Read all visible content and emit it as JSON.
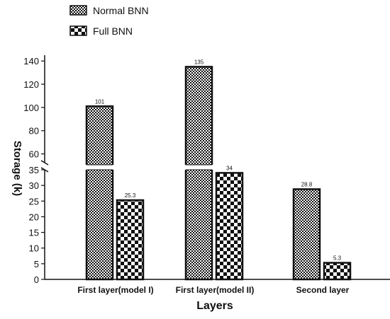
{
  "chart_data": {
    "type": "bar",
    "xlabel": "Layers",
    "ylabel": "Storage (k)",
    "categories": [
      "First layer(model I)",
      "First layer(model II)",
      "Second layer"
    ],
    "series": [
      {
        "name": "Normal BNN",
        "values": [
          101,
          135,
          28.8
        ],
        "labels": [
          "101",
          "135",
          "28.8"
        ],
        "pattern": "fine-checker"
      },
      {
        "name": "Full BNN",
        "values": [
          25.3,
          34,
          5.3
        ],
        "labels": [
          "25.3",
          "34",
          "5.3"
        ],
        "pattern": "coarse-checker"
      }
    ],
    "axis_break": {
      "lower_range": [
        0,
        35
      ],
      "upper_range": [
        50,
        145
      ]
    },
    "yticks_lower": [
      0,
      5,
      10,
      15,
      20,
      25,
      30,
      35
    ],
    "yticks_upper": [
      60,
      80,
      100,
      120,
      140
    ],
    "legend": "top-left",
    "grid": false,
    "colors": {
      "bar_dark": "#111111",
      "bar_light": "#ffffff"
    }
  }
}
